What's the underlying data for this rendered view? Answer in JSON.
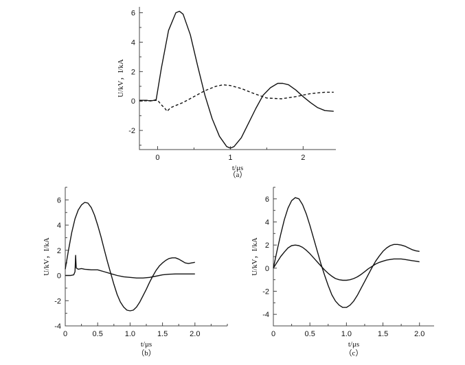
{
  "chart_data": [
    {
      "panel_label": "（a）",
      "type": "line",
      "xlabel": "t/μs",
      "ylabel": "U/kV，I/kA",
      "xlim": [
        -0.25,
        2.45
      ],
      "ylim": [
        -3.3,
        6.4
      ],
      "xticks": [
        0,
        1,
        2
      ],
      "yticks": [
        -2,
        0,
        2,
        4,
        6
      ],
      "grid": false,
      "series": [
        {
          "style": "solid",
          "x": [
            -0.25,
            -0.15,
            -0.1,
            -0.05,
            -0.02,
            0.05,
            0.15,
            0.25,
            0.3,
            0.35,
            0.45,
            0.55,
            0.65,
            0.75,
            0.85,
            0.95,
            1.0,
            1.05,
            1.15,
            1.25,
            1.35,
            1.45,
            1.55,
            1.65,
            1.72,
            1.8,
            1.9,
            2.0,
            2.1,
            2.2,
            2.3,
            2.42
          ],
          "y": [
            0.05,
            0.05,
            0.0,
            0.05,
            0.1,
            2.2,
            4.8,
            6.0,
            6.1,
            5.9,
            4.5,
            2.4,
            0.4,
            -1.2,
            -2.4,
            -3.1,
            -3.2,
            -3.1,
            -2.5,
            -1.5,
            -0.5,
            0.4,
            0.9,
            1.2,
            1.2,
            1.1,
            0.75,
            0.3,
            -0.1,
            -0.45,
            -0.65,
            -0.7
          ]
        },
        {
          "style": "dashed",
          "x": [
            -0.25,
            0.0,
            0.05,
            0.1,
            0.13,
            0.18,
            0.25,
            0.35,
            0.5,
            0.65,
            0.8,
            0.9,
            1.0,
            1.15,
            1.3,
            1.5,
            1.7,
            1.9,
            2.1,
            2.3,
            2.42
          ],
          "y": [
            0.0,
            0.05,
            -0.25,
            -0.5,
            -0.7,
            -0.45,
            -0.3,
            -0.1,
            0.3,
            0.7,
            1.0,
            1.1,
            1.05,
            0.85,
            0.55,
            0.2,
            0.15,
            0.3,
            0.5,
            0.6,
            0.6
          ]
        }
      ],
      "caption_text": "（a）"
    },
    {
      "panel_label": "（b）",
      "type": "line",
      "xlabel": "t/μs",
      "ylabel": "U/kV，I/kA",
      "xlim": [
        0,
        2.5
      ],
      "ylim": [
        -4,
        7
      ],
      "xticks": [
        0,
        0.5,
        1.0,
        1.5,
        2.0
      ],
      "xtick_labels": [
        "0",
        "0.5",
        "1.0",
        "1.5",
        "2.0"
      ],
      "yticks": [
        -4,
        -2,
        0,
        2,
        4,
        6
      ],
      "grid": false,
      "series": [
        {
          "style": "solid",
          "x": [
            0.0,
            0.05,
            0.1,
            0.15,
            0.2,
            0.25,
            0.3,
            0.35,
            0.4,
            0.45,
            0.5,
            0.55,
            0.6,
            0.65,
            0.7,
            0.75,
            0.8,
            0.85,
            0.9,
            0.95,
            1.0,
            1.05,
            1.1,
            1.15,
            1.2,
            1.25,
            1.3,
            1.35,
            1.4,
            1.45,
            1.5,
            1.55,
            1.6,
            1.65,
            1.7,
            1.75,
            1.8,
            1.85,
            1.9,
            1.95,
            2.0
          ],
          "y": [
            0.5,
            2.0,
            3.4,
            4.5,
            5.2,
            5.6,
            5.8,
            5.75,
            5.4,
            4.8,
            4.0,
            3.1,
            2.1,
            1.1,
            0.2,
            -0.7,
            -1.5,
            -2.1,
            -2.5,
            -2.75,
            -2.8,
            -2.75,
            -2.5,
            -2.1,
            -1.6,
            -1.1,
            -0.55,
            -0.05,
            0.4,
            0.75,
            1.0,
            1.2,
            1.35,
            1.4,
            1.4,
            1.3,
            1.15,
            1.0,
            0.95,
            1.0,
            1.05
          ]
        },
        {
          "style": "solid",
          "x": [
            0.0,
            0.08,
            0.13,
            0.15,
            0.16,
            0.17,
            0.2,
            0.25,
            0.3,
            0.4,
            0.5,
            0.6,
            0.7,
            0.8,
            0.9,
            1.0,
            1.1,
            1.2,
            1.3,
            1.4,
            1.5,
            1.6,
            1.7,
            1.8,
            1.9,
            2.0
          ],
          "y": [
            0.0,
            0.0,
            0.05,
            0.3,
            1.6,
            0.6,
            0.5,
            0.55,
            0.5,
            0.45,
            0.45,
            0.3,
            0.15,
            0.0,
            -0.1,
            -0.15,
            -0.2,
            -0.2,
            -0.15,
            -0.05,
            0.05,
            0.1,
            0.12,
            0.12,
            0.12,
            0.12
          ]
        }
      ],
      "caption_text": "（b）"
    },
    {
      "panel_label": "（c）",
      "type": "line",
      "xlabel": "t/μs",
      "ylabel": "U/kV，I/kA",
      "xlim": [
        0,
        2.2
      ],
      "ylim": [
        -5,
        7
      ],
      "xticks": [
        0,
        0.5,
        1.0,
        1.5,
        2.0
      ],
      "xtick_labels": [
        "0",
        "0.5",
        "1.0",
        "1.5",
        "2.0"
      ],
      "yticks": [
        -4,
        -2,
        0,
        2,
        4,
        6
      ],
      "grid": false,
      "series": [
        {
          "style": "solid",
          "x": [
            0.0,
            0.05,
            0.1,
            0.15,
            0.2,
            0.25,
            0.3,
            0.35,
            0.4,
            0.45,
            0.5,
            0.55,
            0.6,
            0.65,
            0.7,
            0.75,
            0.8,
            0.85,
            0.9,
            0.95,
            1.0,
            1.05,
            1.1,
            1.15,
            1.2,
            1.25,
            1.3,
            1.35,
            1.4,
            1.45,
            1.5,
            1.55,
            1.6,
            1.65,
            1.7,
            1.75,
            1.8,
            1.85,
            1.9,
            1.95,
            2.0
          ],
          "y": [
            0.0,
            1.5,
            2.9,
            4.2,
            5.2,
            5.85,
            6.1,
            6.0,
            5.5,
            4.7,
            3.7,
            2.6,
            1.5,
            0.4,
            -0.6,
            -1.5,
            -2.3,
            -2.85,
            -3.2,
            -3.4,
            -3.4,
            -3.2,
            -2.85,
            -2.35,
            -1.75,
            -1.15,
            -0.55,
            0.05,
            0.6,
            1.05,
            1.45,
            1.75,
            1.95,
            2.05,
            2.05,
            2.0,
            1.9,
            1.75,
            1.6,
            1.5,
            1.45
          ]
        },
        {
          "style": "solid",
          "x": [
            0.0,
            0.05,
            0.1,
            0.15,
            0.2,
            0.25,
            0.3,
            0.35,
            0.4,
            0.45,
            0.5,
            0.55,
            0.6,
            0.65,
            0.7,
            0.75,
            0.8,
            0.85,
            0.9,
            0.95,
            1.0,
            1.05,
            1.1,
            1.15,
            1.2,
            1.25,
            1.3,
            1.35,
            1.4,
            1.45,
            1.5,
            1.55,
            1.6,
            1.65,
            1.7,
            1.75,
            1.8,
            1.85,
            1.9,
            1.95,
            2.0
          ],
          "y": [
            0.0,
            0.5,
            1.0,
            1.4,
            1.75,
            1.95,
            2.0,
            1.95,
            1.8,
            1.55,
            1.25,
            0.9,
            0.55,
            0.2,
            -0.15,
            -0.45,
            -0.7,
            -0.9,
            -1.0,
            -1.05,
            -1.05,
            -1.0,
            -0.9,
            -0.75,
            -0.55,
            -0.3,
            -0.05,
            0.15,
            0.35,
            0.5,
            0.6,
            0.7,
            0.75,
            0.8,
            0.8,
            0.8,
            0.75,
            0.7,
            0.65,
            0.6,
            0.55
          ]
        }
      ],
      "caption_text": "（c）"
    }
  ]
}
